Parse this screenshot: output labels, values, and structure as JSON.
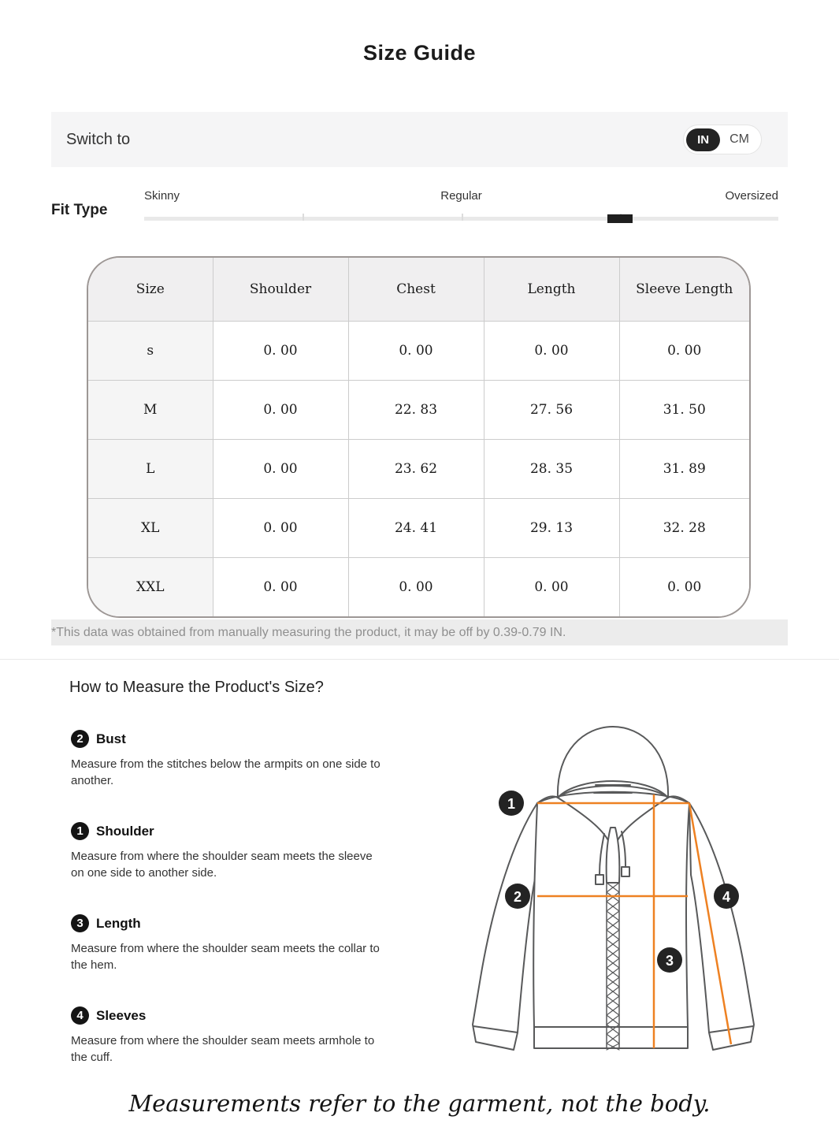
{
  "title": "Size Guide",
  "unit_bar": {
    "label": "Switch to",
    "in_label": "IN",
    "cm_label": "CM",
    "selected_unit": "IN"
  },
  "fit_type": {
    "label": "Fit Type",
    "options": [
      "Skinny",
      "Regular",
      "Oversized"
    ],
    "value_percent": 75
  },
  "size_table": {
    "columns": [
      "Size",
      "Shoulder",
      "Chest",
      "Length",
      "Sleeve Length"
    ],
    "rows": [
      {
        "size": "s",
        "values": [
          "0. 00",
          "0. 00",
          "0. 00",
          "0. 00"
        ]
      },
      {
        "size": "M",
        "values": [
          "0. 00",
          "22. 83",
          "27. 56",
          "31. 50"
        ]
      },
      {
        "size": "L",
        "values": [
          "0. 00",
          "23. 62",
          "28. 35",
          "31. 89"
        ]
      },
      {
        "size": "XL",
        "values": [
          "0. 00",
          "24. 41",
          "29. 13",
          "32. 28"
        ]
      },
      {
        "size": "XXL",
        "values": [
          "0. 00",
          "0. 00",
          "0. 00",
          "0. 00"
        ]
      }
    ]
  },
  "note": "*This data was obtained from manually measuring the product, it may be off by 0.39-0.79 IN.",
  "how_to": {
    "heading": "How to Measure the Product's Size?",
    "sections": [
      {
        "num": "2",
        "label": "Bust",
        "desc": "Measure from the stitches below the armpits on one side to another."
      },
      {
        "num": "1",
        "label": "Shoulder",
        "desc": "Measure from where the shoulder seam meets the sleeve on one side to another side."
      },
      {
        "num": "3",
        "label": "Length",
        "desc": "Measure from where the shoulder seam meets the collar to the hem."
      },
      {
        "num": "4",
        "label": "Sleeves",
        "desc": "Measure from where the shoulder seam meets armhole to the cuff."
      }
    ]
  },
  "diagram": {
    "badge_1": "1",
    "badge_2": "2",
    "badge_3": "3",
    "badge_4": "4",
    "line_color": "#ee8122",
    "outline_color": "#58595a",
    "badge_color": "#232323"
  },
  "footer_note": "Measurements refer to the garment, not the body.",
  "colors": {
    "bar_background": "#f5f5f6",
    "note_background": "#ececec",
    "table_border": "#9d9795",
    "grid_line": "#cccccc",
    "selected_pill": "#232323",
    "accent_orange": "#ee8122"
  }
}
